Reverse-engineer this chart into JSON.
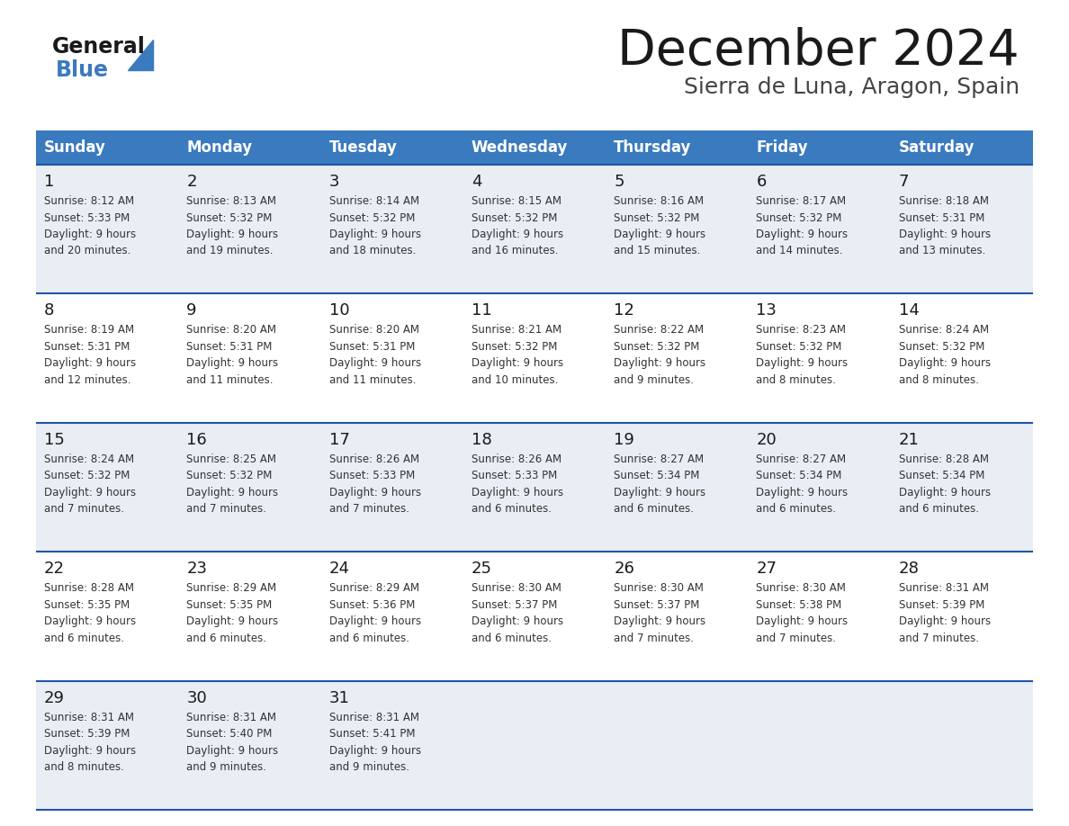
{
  "title": "December 2024",
  "subtitle": "Sierra de Luna, Aragon, Spain",
  "header_bg": "#3a7abf",
  "header_text_color": "#ffffff",
  "row_bg_even": "#e8eef4",
  "row_bg_odd": "#ffffff",
  "border_color": "#2255aa",
  "day_headers": [
    "Sunday",
    "Monday",
    "Tuesday",
    "Wednesday",
    "Thursday",
    "Friday",
    "Saturday"
  ],
  "days": [
    {
      "day": 1,
      "col": 0,
      "row": 0,
      "sunrise": "8:12 AM",
      "sunset": "5:33 PM",
      "daylight_hours": 9,
      "daylight_minutes": 20
    },
    {
      "day": 2,
      "col": 1,
      "row": 0,
      "sunrise": "8:13 AM",
      "sunset": "5:32 PM",
      "daylight_hours": 9,
      "daylight_minutes": 19
    },
    {
      "day": 3,
      "col": 2,
      "row": 0,
      "sunrise": "8:14 AM",
      "sunset": "5:32 PM",
      "daylight_hours": 9,
      "daylight_minutes": 18
    },
    {
      "day": 4,
      "col": 3,
      "row": 0,
      "sunrise": "8:15 AM",
      "sunset": "5:32 PM",
      "daylight_hours": 9,
      "daylight_minutes": 16
    },
    {
      "day": 5,
      "col": 4,
      "row": 0,
      "sunrise": "8:16 AM",
      "sunset": "5:32 PM",
      "daylight_hours": 9,
      "daylight_minutes": 15
    },
    {
      "day": 6,
      "col": 5,
      "row": 0,
      "sunrise": "8:17 AM",
      "sunset": "5:32 PM",
      "daylight_hours": 9,
      "daylight_minutes": 14
    },
    {
      "day": 7,
      "col": 6,
      "row": 0,
      "sunrise": "8:18 AM",
      "sunset": "5:31 PM",
      "daylight_hours": 9,
      "daylight_minutes": 13
    },
    {
      "day": 8,
      "col": 0,
      "row": 1,
      "sunrise": "8:19 AM",
      "sunset": "5:31 PM",
      "daylight_hours": 9,
      "daylight_minutes": 12
    },
    {
      "day": 9,
      "col": 1,
      "row": 1,
      "sunrise": "8:20 AM",
      "sunset": "5:31 PM",
      "daylight_hours": 9,
      "daylight_minutes": 11
    },
    {
      "day": 10,
      "col": 2,
      "row": 1,
      "sunrise": "8:20 AM",
      "sunset": "5:31 PM",
      "daylight_hours": 9,
      "daylight_minutes": 11
    },
    {
      "day": 11,
      "col": 3,
      "row": 1,
      "sunrise": "8:21 AM",
      "sunset": "5:32 PM",
      "daylight_hours": 9,
      "daylight_minutes": 10
    },
    {
      "day": 12,
      "col": 4,
      "row": 1,
      "sunrise": "8:22 AM",
      "sunset": "5:32 PM",
      "daylight_hours": 9,
      "daylight_minutes": 9
    },
    {
      "day": 13,
      "col": 5,
      "row": 1,
      "sunrise": "8:23 AM",
      "sunset": "5:32 PM",
      "daylight_hours": 9,
      "daylight_minutes": 8
    },
    {
      "day": 14,
      "col": 6,
      "row": 1,
      "sunrise": "8:24 AM",
      "sunset": "5:32 PM",
      "daylight_hours": 9,
      "daylight_minutes": 8
    },
    {
      "day": 15,
      "col": 0,
      "row": 2,
      "sunrise": "8:24 AM",
      "sunset": "5:32 PM",
      "daylight_hours": 9,
      "daylight_minutes": 7
    },
    {
      "day": 16,
      "col": 1,
      "row": 2,
      "sunrise": "8:25 AM",
      "sunset": "5:32 PM",
      "daylight_hours": 9,
      "daylight_minutes": 7
    },
    {
      "day": 17,
      "col": 2,
      "row": 2,
      "sunrise": "8:26 AM",
      "sunset": "5:33 PM",
      "daylight_hours": 9,
      "daylight_minutes": 7
    },
    {
      "day": 18,
      "col": 3,
      "row": 2,
      "sunrise": "8:26 AM",
      "sunset": "5:33 PM",
      "daylight_hours": 9,
      "daylight_minutes": 6
    },
    {
      "day": 19,
      "col": 4,
      "row": 2,
      "sunrise": "8:27 AM",
      "sunset": "5:34 PM",
      "daylight_hours": 9,
      "daylight_minutes": 6
    },
    {
      "day": 20,
      "col": 5,
      "row": 2,
      "sunrise": "8:27 AM",
      "sunset": "5:34 PM",
      "daylight_hours": 9,
      "daylight_minutes": 6
    },
    {
      "day": 21,
      "col": 6,
      "row": 2,
      "sunrise": "8:28 AM",
      "sunset": "5:34 PM",
      "daylight_hours": 9,
      "daylight_minutes": 6
    },
    {
      "day": 22,
      "col": 0,
      "row": 3,
      "sunrise": "8:28 AM",
      "sunset": "5:35 PM",
      "daylight_hours": 9,
      "daylight_minutes": 6
    },
    {
      "day": 23,
      "col": 1,
      "row": 3,
      "sunrise": "8:29 AM",
      "sunset": "5:35 PM",
      "daylight_hours": 9,
      "daylight_minutes": 6
    },
    {
      "day": 24,
      "col": 2,
      "row": 3,
      "sunrise": "8:29 AM",
      "sunset": "5:36 PM",
      "daylight_hours": 9,
      "daylight_minutes": 6
    },
    {
      "day": 25,
      "col": 3,
      "row": 3,
      "sunrise": "8:30 AM",
      "sunset": "5:37 PM",
      "daylight_hours": 9,
      "daylight_minutes": 6
    },
    {
      "day": 26,
      "col": 4,
      "row": 3,
      "sunrise": "8:30 AM",
      "sunset": "5:37 PM",
      "daylight_hours": 9,
      "daylight_minutes": 7
    },
    {
      "day": 27,
      "col": 5,
      "row": 3,
      "sunrise": "8:30 AM",
      "sunset": "5:38 PM",
      "daylight_hours": 9,
      "daylight_minutes": 7
    },
    {
      "day": 28,
      "col": 6,
      "row": 3,
      "sunrise": "8:31 AM",
      "sunset": "5:39 PM",
      "daylight_hours": 9,
      "daylight_minutes": 7
    },
    {
      "day": 29,
      "col": 0,
      "row": 4,
      "sunrise": "8:31 AM",
      "sunset": "5:39 PM",
      "daylight_hours": 9,
      "daylight_minutes": 8
    },
    {
      "day": 30,
      "col": 1,
      "row": 4,
      "sunrise": "8:31 AM",
      "sunset": "5:40 PM",
      "daylight_hours": 9,
      "daylight_minutes": 9
    },
    {
      "day": 31,
      "col": 2,
      "row": 4,
      "sunrise": "8:31 AM",
      "sunset": "5:41 PM",
      "daylight_hours": 9,
      "daylight_minutes": 9
    }
  ],
  "logo_text1": "General",
  "logo_text2": "Blue",
  "logo_color1": "#1a1a1a",
  "logo_color2": "#3a7abf",
  "logo_triangle_color": "#3a7abf",
  "title_fontsize": 40,
  "subtitle_fontsize": 18,
  "header_fontsize": 12,
  "day_num_fontsize": 13,
  "cell_text_fontsize": 8.5
}
